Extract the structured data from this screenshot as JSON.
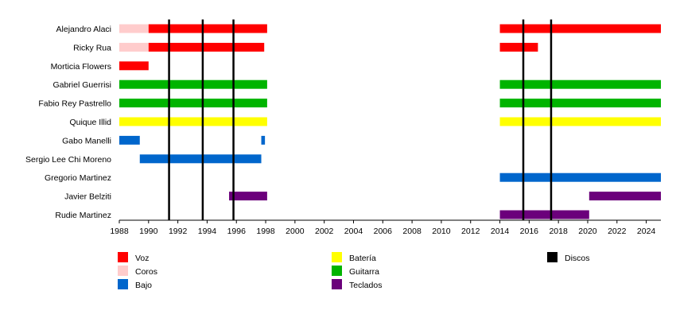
{
  "chart_data": {
    "type": "timeline",
    "title": "",
    "xlim": [
      1988,
      2025
    ],
    "x_ticks": [
      1988,
      1990,
      1992,
      1994,
      1996,
      1998,
      2000,
      2002,
      2004,
      2006,
      2008,
      2010,
      2012,
      2014,
      2016,
      2018,
      2020,
      2022,
      2024
    ],
    "roles": [
      {
        "key": "voz",
        "name": "Voz",
        "color": "#ff0000"
      },
      {
        "key": "coros",
        "name": "Coros",
        "color": "#ffcccc"
      },
      {
        "key": "bajo",
        "name": "Bajo",
        "color": "#0066cc"
      },
      {
        "key": "bateria",
        "name": "Batería",
        "color": "#ffff00"
      },
      {
        "key": "guitarra",
        "name": "Guitarra",
        "color": "#00b400"
      },
      {
        "key": "teclados",
        "name": "Teclados",
        "color": "#6b007b"
      },
      {
        "key": "discos",
        "name": "Discos",
        "color": "#000000"
      }
    ],
    "members": [
      {
        "name": "Alejandro Alaci",
        "bars": [
          {
            "role": "coros",
            "start": 1988,
            "end": 1990
          },
          {
            "role": "voz",
            "start": 1990,
            "end": 1998.1
          },
          {
            "role": "voz",
            "start": 2014,
            "end": 2025
          }
        ]
      },
      {
        "name": "Ricky Rua",
        "bars": [
          {
            "role": "coros",
            "start": 1988,
            "end": 1990
          },
          {
            "role": "voz",
            "start": 1990,
            "end": 1997.9
          },
          {
            "role": "voz",
            "start": 2014,
            "end": 2016.6
          }
        ]
      },
      {
        "name": "Morticia Flowers",
        "bars": [
          {
            "role": "voz",
            "start": 1988,
            "end": 1990
          }
        ]
      },
      {
        "name": "Gabriel Guerrisi",
        "bars": [
          {
            "role": "guitarra",
            "start": 1988,
            "end": 1998.1
          },
          {
            "role": "guitarra",
            "start": 2014,
            "end": 2025
          }
        ]
      },
      {
        "name": "Fabio Rey Pastrello",
        "bars": [
          {
            "role": "guitarra",
            "start": 1988,
            "end": 1998.1
          },
          {
            "role": "guitarra",
            "start": 2014,
            "end": 2025
          }
        ]
      },
      {
        "name": "Quique Illid",
        "bars": [
          {
            "role": "bateria",
            "start": 1988,
            "end": 1998.1
          },
          {
            "role": "bateria",
            "start": 2014,
            "end": 2025
          }
        ]
      },
      {
        "name": "Gabo Manelli",
        "bars": [
          {
            "role": "bajo",
            "start": 1988,
            "end": 1989.4
          },
          {
            "role": "bajo",
            "start": 1997.7,
            "end": 1997.95
          }
        ]
      },
      {
        "name": "Sergio Lee Chi Moreno",
        "bars": [
          {
            "role": "bajo",
            "start": 1989.4,
            "end": 1997.7
          }
        ]
      },
      {
        "name": "Gregorio Martinez",
        "bars": [
          {
            "role": "bajo",
            "start": 2014,
            "end": 2025
          }
        ]
      },
      {
        "name": "Javier Belziti",
        "bars": [
          {
            "role": "teclados",
            "start": 1995.5,
            "end": 1998.1
          },
          {
            "role": "teclados",
            "start": 2020.1,
            "end": 2025
          }
        ]
      },
      {
        "name": "Rudie Martinez",
        "bars": [
          {
            "role": "teclados",
            "start": 2014,
            "end": 2020.1
          }
        ]
      }
    ],
    "discos": [
      1991.4,
      1993.7,
      1995.8,
      2015.6,
      2017.5
    ]
  }
}
